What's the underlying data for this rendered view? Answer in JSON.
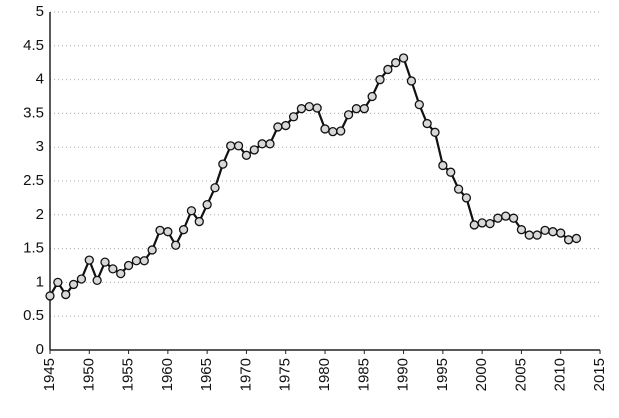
{
  "chart_data": {
    "type": "line",
    "x": [
      1945,
      1946,
      1947,
      1948,
      1949,
      1950,
      1951,
      1952,
      1953,
      1954,
      1955,
      1956,
      1957,
      1958,
      1959,
      1960,
      1961,
      1962,
      1963,
      1964,
      1965,
      1966,
      1967,
      1968,
      1969,
      1970,
      1971,
      1972,
      1973,
      1974,
      1975,
      1976,
      1977,
      1978,
      1979,
      1980,
      1981,
      1982,
      1983,
      1984,
      1985,
      1986,
      1987,
      1988,
      1989,
      1990,
      1991,
      1992,
      1993,
      1994,
      1995,
      1996,
      1997,
      1998,
      1999,
      2000,
      2001,
      2002,
      2003,
      2004,
      2005,
      2006,
      2007,
      2008,
      2009,
      2010,
      2011,
      2012
    ],
    "values": [
      0.8,
      1.0,
      0.82,
      0.97,
      1.05,
      1.33,
      1.03,
      1.3,
      1.2,
      1.13,
      1.25,
      1.32,
      1.32,
      1.48,
      1.77,
      1.75,
      1.55,
      1.78,
      2.06,
      1.9,
      2.15,
      2.4,
      2.75,
      3.02,
      3.02,
      2.88,
      2.96,
      3.05,
      3.05,
      3.3,
      3.32,
      3.45,
      3.57,
      3.6,
      3.58,
      3.27,
      3.23,
      3.24,
      3.48,
      3.57,
      3.57,
      3.75,
      4.0,
      4.15,
      4.25,
      4.32,
      3.98,
      3.63,
      3.35,
      3.22,
      2.73,
      2.63,
      2.38,
      2.25,
      1.85,
      1.88,
      1.87,
      1.95,
      1.98,
      1.95,
      1.78,
      1.7,
      1.7,
      1.77,
      1.75,
      1.73,
      1.63,
      1.65
    ],
    "color": "#111111",
    "marker_fill": "#d8d8d8",
    "xlim": [
      1945,
      2015
    ],
    "xticks": [
      1945,
      1950,
      1955,
      1960,
      1965,
      1970,
      1975,
      1980,
      1985,
      1990,
      1995,
      2000,
      2005,
      2010,
      2015
    ],
    "ylim": [
      0,
      5
    ],
    "yticks": [
      0,
      0.5,
      1,
      1.5,
      2,
      2.5,
      3,
      3.5,
      4,
      4.5,
      5
    ],
    "grid": true
  }
}
